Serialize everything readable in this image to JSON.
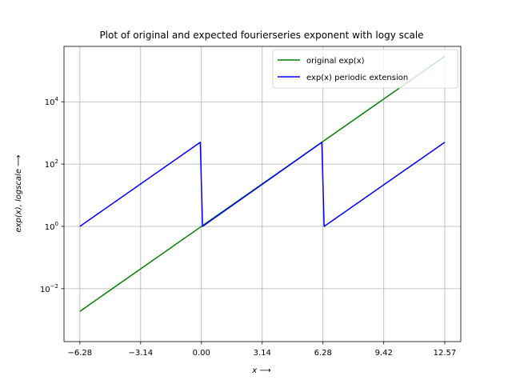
{
  "chart_data": {
    "type": "line",
    "title": "Plot of original and expected fourierseries exponent with logy scale",
    "xlabel": "x ⟶",
    "ylabel": "exp(x), logscale ⟶",
    "xlim": [
      -7.1,
      13.4
    ],
    "ylim": [
      0.0002,
      600000
    ],
    "yscale": "log",
    "grid": true,
    "legend_position": "top-right",
    "xticks": [
      {
        "value": -6.28,
        "label": "−6.28"
      },
      {
        "value": -3.14,
        "label": "−3.14"
      },
      {
        "value": 0.0,
        "label": "0.00"
      },
      {
        "value": 3.14,
        "label": "3.14"
      },
      {
        "value": 6.28,
        "label": "6.28"
      },
      {
        "value": 9.42,
        "label": "9.42"
      },
      {
        "value": 12.57,
        "label": "12.57"
      }
    ],
    "yticks": [
      {
        "value": 0.01,
        "base": "10",
        "exp": "−2"
      },
      {
        "value": 1,
        "base": "10",
        "exp": "0"
      },
      {
        "value": 100,
        "base": "10",
        "exp": "2"
      },
      {
        "value": 10000,
        "base": "10",
        "exp": "4"
      }
    ],
    "series": [
      {
        "name": "original exp(x)",
        "color": "#008000",
        "x": [
          -6.28,
          12.57
        ],
        "y": [
          0.00187,
          287000
        ]
      },
      {
        "name": "exp(x) periodic extension",
        "color": "#0000ff",
        "x": [
          -6.28,
          -0.06,
          0.06,
          6.22,
          6.34,
          12.57
        ],
        "y": [
          1.0,
          500,
          1.0,
          500,
          1.0,
          500
        ]
      }
    ]
  }
}
